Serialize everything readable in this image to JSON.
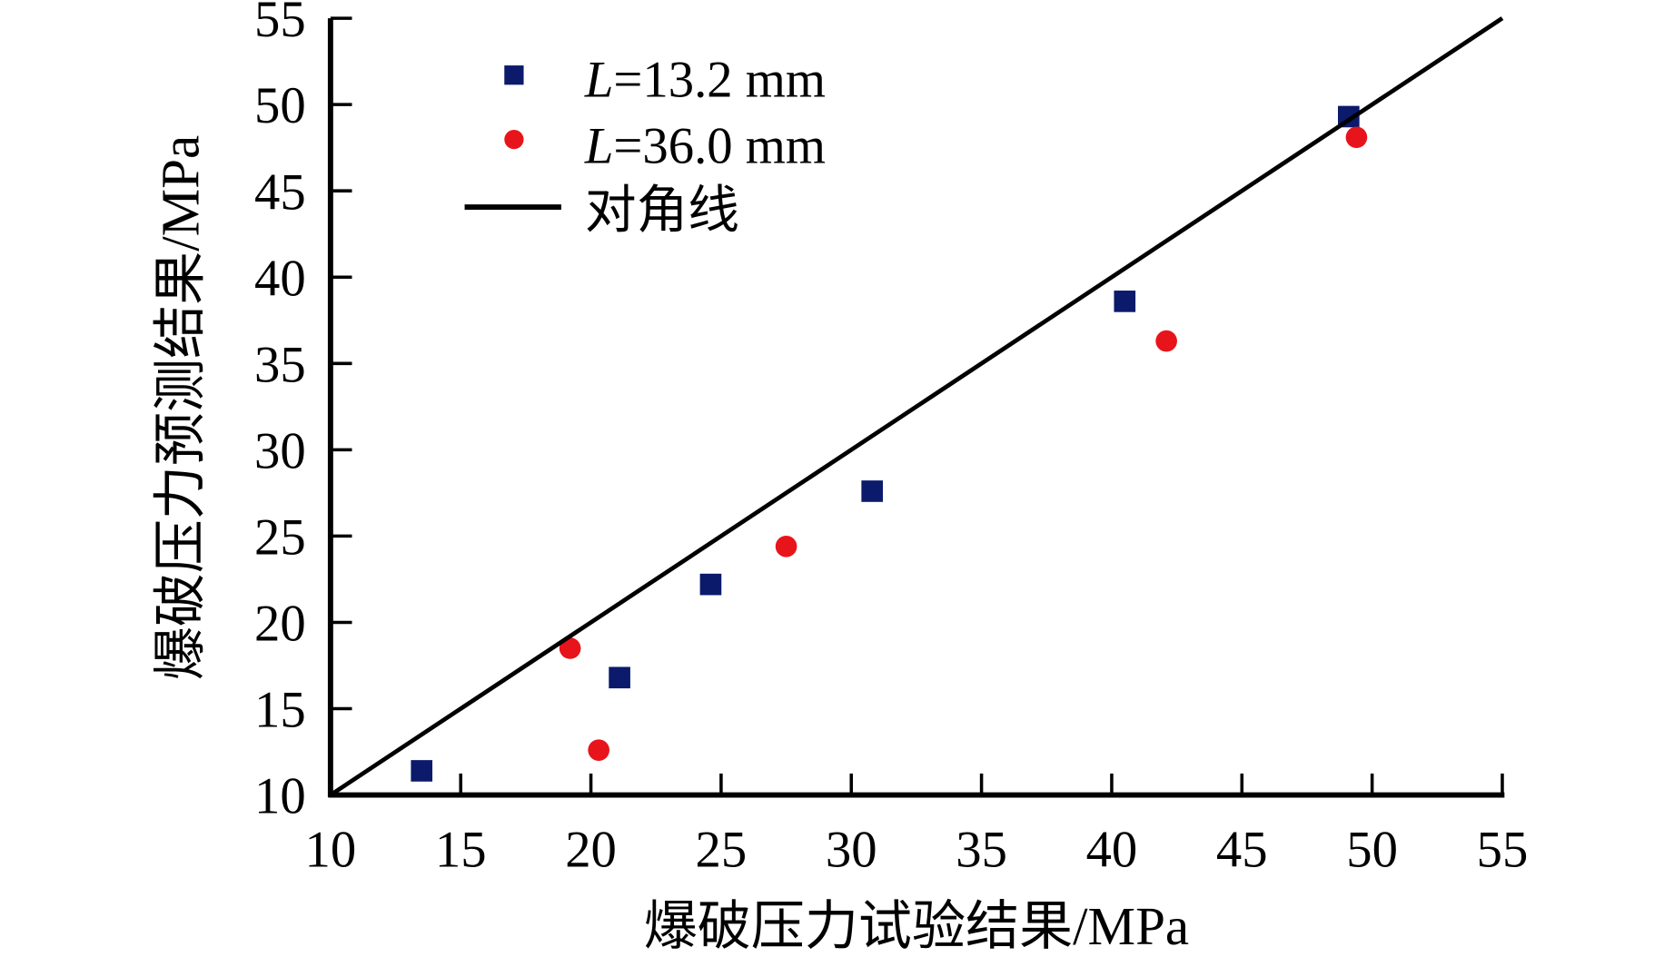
{
  "chart_data": {
    "type": "scatter",
    "title": "",
    "xlabel": "爆破压力试验结果/MPa",
    "ylabel": "爆破压力预测结果/MPa",
    "xlim": [
      10,
      55
    ],
    "ylim": [
      10,
      55
    ],
    "xticks": [
      "10",
      "15",
      "20",
      "25",
      "30",
      "35",
      "40",
      "45",
      "50",
      "55"
    ],
    "yticks": [
      "10",
      "15",
      "20",
      "25",
      "30",
      "35",
      "40",
      "45",
      "50",
      "55"
    ],
    "grid": false,
    "legend_position": "top-left",
    "series": [
      {
        "name": "L=13.2 mm",
        "name_italic": "L",
        "name_rest": "=13.2 mm",
        "marker": "square",
        "color": "#0b1a6b",
        "points": [
          [
            13.5,
            11.4
          ],
          [
            21.1,
            16.8
          ],
          [
            24.6,
            22.2
          ],
          [
            30.8,
            27.6
          ],
          [
            40.5,
            38.6
          ],
          [
            49.1,
            49.3
          ]
        ]
      },
      {
        "name": "L=36.0 mm",
        "name_italic": "L",
        "name_rest": "=36.0 mm",
        "marker": "circle",
        "color": "#e8141b",
        "points": [
          [
            19.2,
            18.5
          ],
          [
            20.3,
            12.6
          ],
          [
            27.5,
            24.4
          ],
          [
            42.1,
            36.3
          ],
          [
            49.4,
            48.1
          ]
        ]
      },
      {
        "name": "对角线",
        "marker": "line",
        "color": "#000000",
        "points": [
          [
            10,
            10
          ],
          [
            55,
            55
          ]
        ]
      }
    ]
  }
}
